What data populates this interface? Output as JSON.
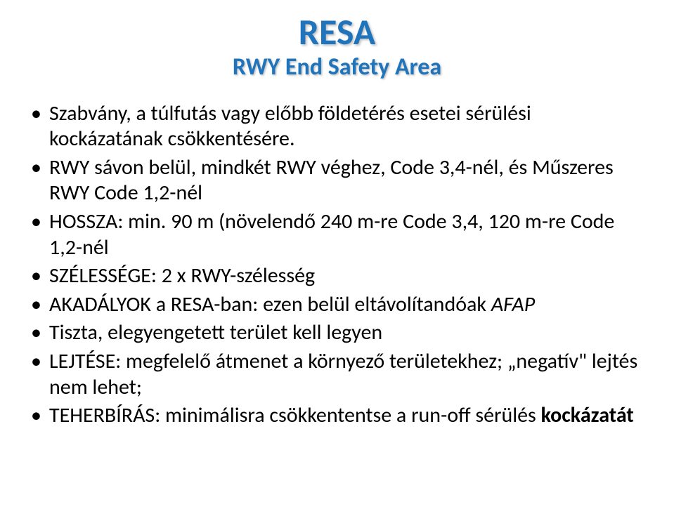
{
  "title": "RESA",
  "subtitle": "RWY End Safety Area",
  "bullets": [
    {
      "html": "Szabvány, a túlfutás vagy előbb földetérés esetei sérülési kockázatának csökkentésére."
    },
    {
      "html": "RWY sávon belül, mindkét RWY véghez, Code 3,4-nél, és Műszeres RWY Code 1,2-nél"
    },
    {
      "html": "HOSSZA: min. 90 m (növelendő 240 m-re Code 3,4, 120 m-re Code 1,2-nél"
    },
    {
      "html": "SZÉLESSÉGE: 2 x RWY-szélesség"
    },
    {
      "html": "AKADÁLYOK a RESA-ban: ezen belül eltávolítandóak <span class=\"italic\">AFAP</span>"
    },
    {
      "html": "Tiszta, elegyengetett terület kell legyen"
    },
    {
      "html": "LEJTÉSE: megfelelő átmenet a környező területekhez; „negatív\" lejtés nem lehet;"
    },
    {
      "html": "TEHERBÍRÁS: minimálisra csökkententse a run-off sérülés <span class=\"bold\">kockázatát</span>"
    }
  ],
  "colors": {
    "title_color": "#1f74bb",
    "text_color": "#000000",
    "background": "#ffffff",
    "shadow": "rgba(0,0,0,0.25)"
  },
  "typography": {
    "title_fontsize": 52,
    "subtitle_fontsize": 34,
    "body_fontsize": 30,
    "font_family": "Calibri"
  }
}
